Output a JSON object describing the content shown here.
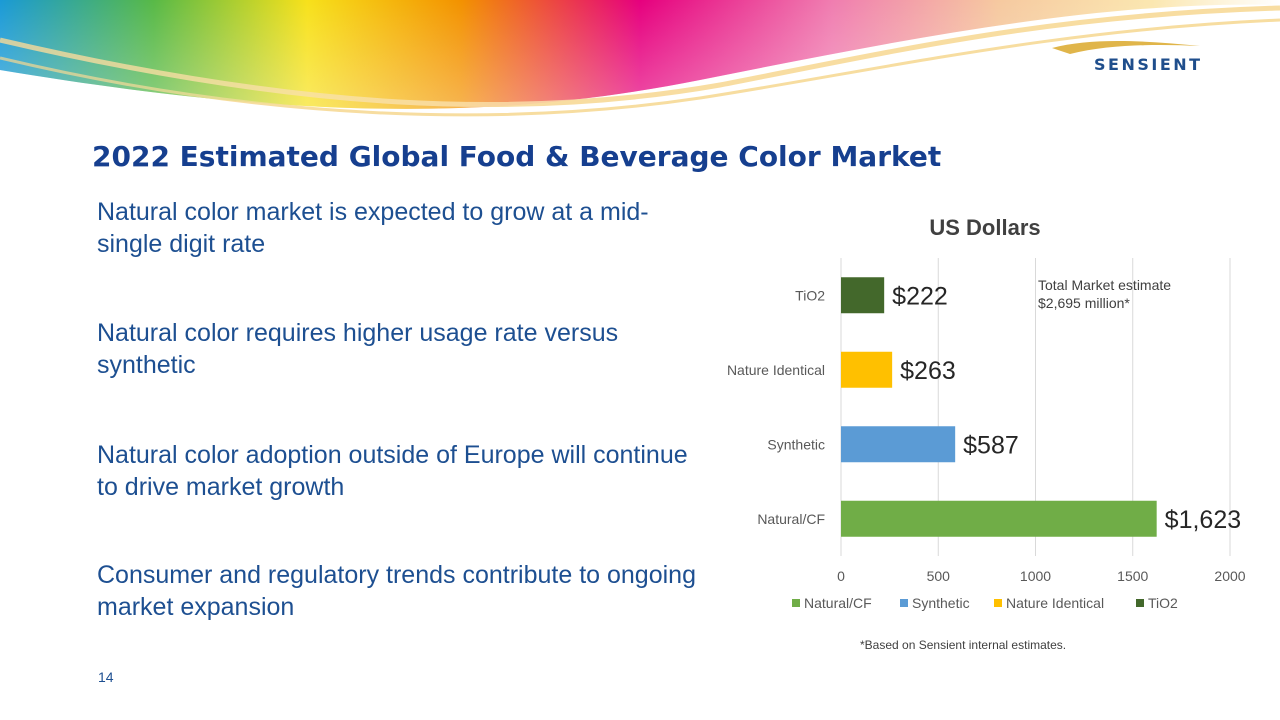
{
  "slide": {
    "title": "2022 Estimated Global Food & Beverage Color Market",
    "bullets": [
      "Natural color market is expected to grow at a mid-single digit rate",
      "Natural color requires higher usage rate versus synthetic",
      "Natural color adoption outside of Europe will continue to drive market growth",
      "Consumer and regulatory trends contribute to ongoing market expansion"
    ],
    "page_number": "14",
    "logo_text": "SENSIENT"
  },
  "chart_data": {
    "type": "bar",
    "orientation": "horizontal",
    "title": "US Dollars",
    "categories": [
      "Natural/CF",
      "Synthetic",
      "Nature Identical",
      "TiO2"
    ],
    "values": [
      1623,
      587,
      263,
      222
    ],
    "data_labels": [
      "$1,623",
      "$587",
      "$263",
      "$222"
    ],
    "colors": [
      "#70ad47",
      "#5b9bd5",
      "#ffc000",
      "#43682b"
    ],
    "xlim": [
      0,
      2000
    ],
    "xticks": [
      0,
      500,
      1000,
      1500,
      2000
    ],
    "xtick_labels": [
      "0",
      "500",
      "1000",
      "1500",
      "2000"
    ],
    "grid": true,
    "legend_position": "bottom",
    "annotation": [
      "Total Market estimate",
      "$2,695 million*"
    ],
    "footnote": "*Based on Sensient internal estimates."
  }
}
